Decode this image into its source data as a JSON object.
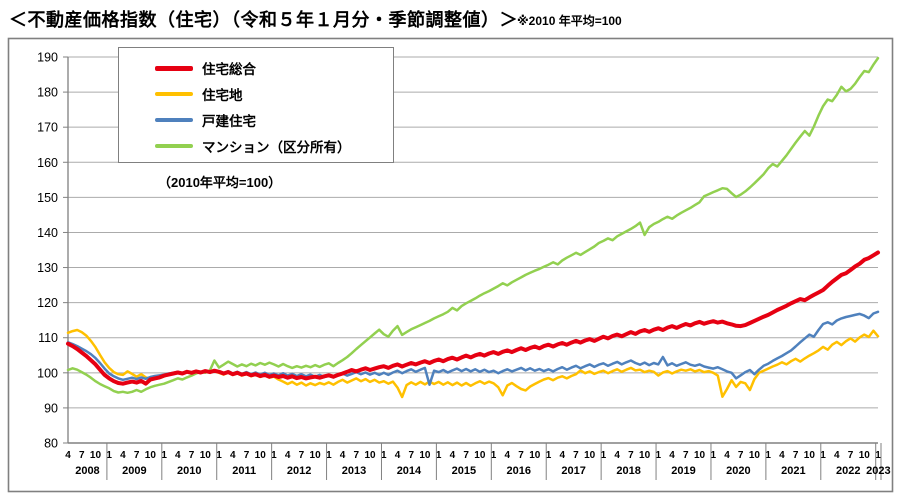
{
  "header": {
    "title": "＜不動産価格指数（住宅）（令和５年１月分・季節調整値）＞",
    "note": "※2010 年平均=100"
  },
  "legend": {
    "note": "（2010年平均=100）"
  },
  "chart_data": {
    "type": "line",
    "title": "不動産価格指数（住宅）",
    "x_frequency": "monthly",
    "x_start": "2008-04",
    "x_end": "2023-01",
    "ylim": [
      80,
      190
    ],
    "ytick_step": 10,
    "grid": true,
    "legend_position": "top-left",
    "x_years": [
      {
        "year": 2008,
        "months": [
          4,
          7,
          10
        ]
      },
      {
        "year": 2009,
        "months": [
          1,
          4,
          7,
          10
        ]
      },
      {
        "year": 2010,
        "months": [
          1,
          4,
          7,
          10
        ]
      },
      {
        "year": 2011,
        "months": [
          1,
          4,
          7,
          10
        ]
      },
      {
        "year": 2012,
        "months": [
          1,
          4,
          7,
          10
        ]
      },
      {
        "year": 2013,
        "months": [
          1,
          4,
          7,
          10
        ]
      },
      {
        "year": 2014,
        "months": [
          1,
          4,
          7,
          10
        ]
      },
      {
        "year": 2015,
        "months": [
          1,
          4,
          7,
          10
        ]
      },
      {
        "year": 2016,
        "months": [
          1,
          4,
          7,
          10
        ]
      },
      {
        "year": 2017,
        "months": [
          1,
          4,
          7,
          10
        ]
      },
      {
        "year": 2018,
        "months": [
          1,
          4,
          7,
          10
        ]
      },
      {
        "year": 2019,
        "months": [
          1,
          4,
          7,
          10
        ]
      },
      {
        "year": 2020,
        "months": [
          1,
          4,
          7,
          10
        ]
      },
      {
        "year": 2021,
        "months": [
          1,
          4,
          7,
          10
        ]
      },
      {
        "year": 2022,
        "months": [
          1,
          4,
          7,
          10
        ]
      },
      {
        "year": 2023,
        "months": [
          1
        ]
      }
    ],
    "series": [
      {
        "name": "住宅総合",
        "color": "#E60012",
        "width": 4,
        "values": [
          108.3,
          107.6,
          106.8,
          105.8,
          104.8,
          103.6,
          102.4,
          100.9,
          99.4,
          98.4,
          97.6,
          97.1,
          96.9,
          97.2,
          97.5,
          97.2,
          97.7,
          96.9,
          98.1,
          98.4,
          98.7,
          99.2,
          99.5,
          99.8,
          100.1,
          99.8,
          100.3,
          100.0,
          100.4,
          100.1,
          100.5,
          100.2,
          100.6,
          100.3,
          99.8,
          100.2,
          99.6,
          100.0,
          99.5,
          99.8,
          99.3,
          99.6,
          99.1,
          99.4,
          98.9,
          99.2,
          98.8,
          99.1,
          98.6,
          99.0,
          98.5,
          98.8,
          98.4,
          98.7,
          98.9,
          98.6,
          99.0,
          99.3,
          98.9,
          99.4,
          99.8,
          100.3,
          100.8,
          100.4,
          100.9,
          101.3,
          100.8,
          101.2,
          101.6,
          101.9,
          101.4,
          102.0,
          102.4,
          101.8,
          102.3,
          102.8,
          102.4,
          102.9,
          103.3,
          102.8,
          103.4,
          103.8,
          103.3,
          103.9,
          104.3,
          103.8,
          104.4,
          104.9,
          104.4,
          105.0,
          105.4,
          104.9,
          105.5,
          105.9,
          105.4,
          106.0,
          106.4,
          105.9,
          106.5,
          107.0,
          106.5,
          107.1,
          107.5,
          107.0,
          107.6,
          108.0,
          107.5,
          108.1,
          108.5,
          108.0,
          108.6,
          109.1,
          108.6,
          109.2,
          109.6,
          109.1,
          109.7,
          110.3,
          109.8,
          110.5,
          110.9,
          110.4,
          111.0,
          111.6,
          111.1,
          111.8,
          112.2,
          111.7,
          112.3,
          112.7,
          112.2,
          112.9,
          113.3,
          112.8,
          113.4,
          113.9,
          113.5,
          114.1,
          114.5,
          114.0,
          114.4,
          114.7,
          114.3,
          114.6,
          114.1,
          113.8,
          113.4,
          113.3,
          113.6,
          114.2,
          114.8,
          115.4,
          116.0,
          116.5,
          117.2,
          117.9,
          118.5,
          119.1,
          119.8,
          120.4,
          121.0,
          120.7,
          121.5,
          122.2,
          122.9,
          123.6,
          124.8,
          125.9,
          126.9,
          127.9,
          128.4,
          129.3,
          130.3,
          131.1,
          132.2,
          132.7,
          133.5,
          134.3
        ]
      },
      {
        "name": "住宅地",
        "color": "#FFC000",
        "width": 2.5,
        "values": [
          111.4,
          111.9,
          112.2,
          111.6,
          110.6,
          109.1,
          107.3,
          105.1,
          103.0,
          101.4,
          100.2,
          99.6,
          99.4,
          100.4,
          99.7,
          98.9,
          99.6,
          98.7,
          98.3,
          98.9,
          98.5,
          99.0,
          99.4,
          99.8,
          100.3,
          99.7,
          100.2,
          99.8,
          100.4,
          100.0,
          100.5,
          100.1,
          100.4,
          100.0,
          99.5,
          100.1,
          99.4,
          99.9,
          99.2,
          99.7,
          99.0,
          99.5,
          98.8,
          99.3,
          98.6,
          98.9,
          98.1,
          97.5,
          96.8,
          97.4,
          96.6,
          97.2,
          96.4,
          97.0,
          96.5,
          97.1,
          96.7,
          97.3,
          96.6,
          97.4,
          98.0,
          97.2,
          97.8,
          98.4,
          97.6,
          98.2,
          97.4,
          98.0,
          97.2,
          97.6,
          96.9,
          97.5,
          95.8,
          93.1,
          96.5,
          97.3,
          96.6,
          97.4,
          96.7,
          97.5,
          96.8,
          97.4,
          96.6,
          97.3,
          96.5,
          97.2,
          96.4,
          97.1,
          96.3,
          97.0,
          97.6,
          96.9,
          97.5,
          97.0,
          95.9,
          93.6,
          96.4,
          97.1,
          96.2,
          95.4,
          95.0,
          96.1,
          96.8,
          97.5,
          98.1,
          98.5,
          97.9,
          98.6,
          99.0,
          98.4,
          99.1,
          99.6,
          100.7,
          99.9,
          100.4,
          99.7,
          100.2,
          100.6,
          99.9,
          100.5,
          101.0,
          100.3,
          100.9,
          101.4,
          100.7,
          100.9,
          100.2,
          100.6,
          100.3,
          99.2,
          100.1,
          100.5,
          99.8,
          100.4,
          100.9,
          100.6,
          101.0,
          100.4,
          100.8,
          100.2,
          100.5,
          100.0,
          99.2,
          93.2,
          95.4,
          97.9,
          96.0,
          97.4,
          97.0,
          95.1,
          98.2,
          100.0,
          100.6,
          101.2,
          101.8,
          102.3,
          103.0,
          102.4,
          103.3,
          104.0,
          103.2,
          104.1,
          104.9,
          105.6,
          106.4,
          107.4,
          106.6,
          108.0,
          108.8,
          107.9,
          109.0,
          109.8,
          108.9,
          110.1,
          110.9,
          110.2,
          112.0,
          110.4
        ]
      },
      {
        "name": "戸建住宅",
        "color": "#4F81BD",
        "width": 2.5,
        "values": [
          108.7,
          108.2,
          107.6,
          106.9,
          106.2,
          105.3,
          104.2,
          102.8,
          101.2,
          99.8,
          99.0,
          98.4,
          98.0,
          98.3,
          98.6,
          98.2,
          98.7,
          98.3,
          98.8,
          99.1,
          99.3,
          99.5,
          99.8,
          100.0,
          100.3,
          99.9,
          100.4,
          100.0,
          100.5,
          100.1,
          100.6,
          100.2,
          100.7,
          100.4,
          99.9,
          100.5,
          99.8,
          100.3,
          99.7,
          100.2,
          99.6,
          100.1,
          99.5,
          100.0,
          99.4,
          99.8,
          99.3,
          99.9,
          99.2,
          99.7,
          99.1,
          99.6,
          99.0,
          99.5,
          98.9,
          99.4,
          98.8,
          99.2,
          98.7,
          99.3,
          99.8,
          99.2,
          99.7,
          100.2,
          99.6,
          100.1,
          99.5,
          100.0,
          99.4,
          100.0,
          99.4,
          100.1,
          100.6,
          99.9,
          100.5,
          101.0,
          100.3,
          100.9,
          101.4,
          96.6,
          100.6,
          100.2,
          100.8,
          100.1,
          100.7,
          101.2,
          100.5,
          101.1,
          100.4,
          101.0,
          100.3,
          100.9,
          100.2,
          100.6,
          99.9,
          100.5,
          101.0,
          100.4,
          100.9,
          101.4,
          100.7,
          101.3,
          100.6,
          101.1,
          100.5,
          101.0,
          100.4,
          101.1,
          101.6,
          100.9,
          101.5,
          102.0,
          101.3,
          101.9,
          102.4,
          101.7,
          102.3,
          102.7,
          102.0,
          102.6,
          103.1,
          102.4,
          103.0,
          103.5,
          102.8,
          102.3,
          102.9,
          102.2,
          102.8,
          102.4,
          104.5,
          102.1,
          102.7,
          102.0,
          102.5,
          103.0,
          102.3,
          102.0,
          102.4,
          101.8,
          101.5,
          101.2,
          101.6,
          101.0,
          100.4,
          100.0,
          98.4,
          99.3,
          100.2,
          100.8,
          99.6,
          100.9,
          102.0,
          102.6,
          103.4,
          104.1,
          104.8,
          105.6,
          106.4,
          107.5,
          108.7,
          109.8,
          110.9,
          110.3,
          112.2,
          113.9,
          114.4,
          113.8,
          114.9,
          115.5,
          115.9,
          116.2,
          116.5,
          116.8,
          116.3,
          115.6,
          116.9,
          117.4
        ]
      },
      {
        "name": "マンション（区分所有）",
        "color": "#92D050",
        "width": 2.5,
        "values": [
          100.8,
          101.3,
          100.9,
          100.2,
          99.5,
          98.6,
          97.6,
          96.8,
          96.2,
          95.6,
          94.8,
          94.4,
          94.6,
          94.3,
          94.6,
          95.1,
          94.6,
          95.3,
          95.9,
          96.3,
          96.6,
          96.9,
          97.4,
          97.9,
          98.4,
          98.1,
          98.7,
          99.2,
          99.8,
          100.3,
          100.0,
          100.7,
          103.5,
          101.5,
          102.3,
          103.2,
          102.5,
          101.8,
          102.4,
          101.9,
          102.6,
          102.1,
          102.8,
          102.3,
          102.9,
          102.4,
          101.8,
          102.5,
          101.9,
          101.4,
          101.9,
          101.5,
          102.0,
          101.6,
          102.2,
          101.7,
          102.3,
          102.7,
          101.9,
          102.8,
          103.6,
          104.5,
          105.6,
          106.8,
          107.9,
          109.0,
          110.1,
          111.2,
          112.3,
          111.0,
          110.3,
          112.0,
          113.3,
          110.8,
          111.6,
          112.4,
          113.0,
          113.6,
          114.2,
          114.8,
          115.5,
          116.1,
          116.7,
          117.4,
          118.5,
          117.8,
          119.0,
          119.8,
          120.5,
          121.2,
          122.0,
          122.7,
          123.3,
          124.0,
          124.7,
          125.5,
          124.9,
          125.8,
          126.5,
          127.2,
          127.9,
          128.5,
          129.1,
          129.6,
          130.2,
          130.8,
          131.5,
          130.9,
          132.0,
          132.8,
          133.5,
          134.2,
          133.6,
          134.4,
          135.2,
          136.0,
          137.0,
          137.6,
          138.3,
          137.8,
          138.9,
          139.6,
          140.3,
          141.0,
          141.8,
          142.8,
          139.3,
          141.5,
          142.4,
          143.0,
          143.8,
          144.5,
          143.9,
          144.8,
          145.6,
          146.3,
          147.0,
          147.8,
          148.6,
          150.3,
          150.9,
          151.5,
          152.0,
          152.6,
          152.4,
          151.2,
          150.1,
          150.8,
          151.7,
          152.8,
          154.0,
          155.3,
          156.6,
          158.3,
          159.5,
          158.8,
          160.4,
          162.0,
          163.8,
          165.6,
          167.3,
          168.9,
          167.6,
          170.2,
          173.3,
          176.0,
          177.9,
          177.4,
          179.2,
          181.5,
          180.2,
          180.9,
          182.4,
          184.3,
          186.0,
          185.7,
          187.8,
          189.7
        ]
      }
    ]
  }
}
